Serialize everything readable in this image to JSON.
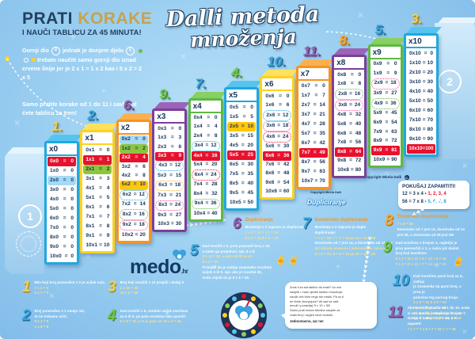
{
  "header": {
    "title_dark": "PRATI",
    "title_gold": "KORAKE",
    "subtitle": "I NAUČI TABLICU ZA 45 MINUTA!",
    "para1_a": "Gornji dio",
    "circle_2": "2",
    "para1_b": "jednak je donjem djelu",
    "circle_1": "1",
    "para1_c": "trebate naučiti samo gornji dio iznad crvene linije jer je 2 x 1 = 1 x 2 kao i 5 x 2 = 2 x 5",
    "para2_a": "Samo pratite korake od",
    "para2_bold": "1 do 11",
    "para2_b": "i savladat ćete tablicu za tren!"
  },
  "title": {
    "line1": "Dalli metoda",
    "line2": "množenja"
  },
  "markers": {
    "bottom_left": "1",
    "top_right": "2"
  },
  "table": {
    "columns": [
      {
        "label": "x0",
        "step": "1.",
        "theme": "cyan",
        "stepColor": "gold",
        "rows": [
          [
            "0x0",
            "0",
            "red"
          ],
          [
            "1x0",
            "0",
            ""
          ],
          [
            "2x0",
            "0",
            "blue"
          ],
          [
            "3x0",
            "0",
            ""
          ],
          [
            "4x0",
            "0",
            ""
          ],
          [
            "5x0",
            "0",
            ""
          ],
          [
            "6x0",
            "0",
            ""
          ],
          [
            "7x0",
            "0",
            ""
          ],
          [
            "8x0",
            "0",
            ""
          ],
          [
            "9x0",
            "0",
            ""
          ],
          [
            "10x0",
            "0",
            ""
          ]
        ]
      },
      {
        "label": "x1",
        "step": "2.",
        "theme": "yellow",
        "stepColor": "blue",
        "rows": [
          [
            "0x1",
            "0",
            ""
          ],
          [
            "1x1",
            "1",
            "red"
          ],
          [
            "2x1",
            "2",
            "green"
          ],
          [
            "3x1",
            "3",
            ""
          ],
          [
            "4x1",
            "4",
            ""
          ],
          [
            "5x1",
            "5",
            ""
          ],
          [
            "6x1",
            "6",
            ""
          ],
          [
            "7x1",
            "7",
            ""
          ],
          [
            "8x1",
            "8",
            ""
          ],
          [
            "9x1",
            "9",
            ""
          ],
          [
            "10x1",
            "10",
            ""
          ]
        ]
      },
      {
        "label": "x2",
        "step": "6.",
        "theme": "orange",
        "stepColor": "purple",
        "rows": [
          [
            "0x2",
            "0",
            "blue"
          ],
          [
            "1x2",
            "2",
            "green"
          ],
          [
            "2x2",
            "4",
            "red"
          ],
          [
            "3x2",
            "6",
            ""
          ],
          [
            "4x2",
            "8",
            ""
          ],
          [
            "5x2",
            "10",
            "yellow"
          ],
          [
            "6x2",
            "12",
            "dot-blue"
          ],
          [
            "7x2",
            "14",
            ""
          ],
          [
            "8x2",
            "16",
            "dot-green"
          ],
          [
            "9x2",
            "18",
            "dot-pink"
          ],
          [
            "10x2",
            "20",
            ""
          ]
        ]
      },
      {
        "label": "x3",
        "step": "9.",
        "theme": "purple",
        "stepColor": "green",
        "rows": [
          [
            "0x3",
            "0",
            ""
          ],
          [
            "1x3",
            "3",
            ""
          ],
          [
            "2x3",
            "6",
            ""
          ],
          [
            "3x3",
            "9",
            "red"
          ],
          [
            "4x3",
            "12",
            "dot-blue"
          ],
          [
            "5x3",
            "15",
            ""
          ],
          [
            "6x3",
            "18",
            "dot-yellow"
          ],
          [
            "7x3",
            "21",
            ""
          ],
          [
            "8x3",
            "24",
            "dot-pink"
          ],
          [
            "9x3",
            "27",
            ""
          ],
          [
            "10x3",
            "30",
            ""
          ]
        ]
      },
      {
        "label": "x4",
        "step": "7.",
        "theme": "green",
        "stepColor": "blue",
        "rows": [
          [
            "0x4",
            "0",
            ""
          ],
          [
            "1x4",
            "4",
            ""
          ],
          [
            "2x4",
            "8",
            ""
          ],
          [
            "3x4",
            "12",
            "dot-blue"
          ],
          [
            "4x4",
            "16",
            "red"
          ],
          [
            "5x4",
            "20",
            ""
          ],
          [
            "6x4",
            "24",
            "dot-red"
          ],
          [
            "7x4",
            "28",
            ""
          ],
          [
            "8x4",
            "32",
            ""
          ],
          [
            "9x4",
            "36",
            "dot-green"
          ],
          [
            "10x4",
            "40",
            ""
          ]
        ]
      },
      {
        "label": "x5",
        "step": "4.",
        "theme": "cyan",
        "stepColor": "green",
        "rows": [
          [
            "0x5",
            "0",
            ""
          ],
          [
            "1x5",
            "5",
            ""
          ],
          [
            "2x5",
            "10",
            "yellow"
          ],
          [
            "3x5",
            "15",
            ""
          ],
          [
            "4x5",
            "20",
            ""
          ],
          [
            "5x5",
            "25",
            "red"
          ],
          [
            "6x5",
            "30",
            ""
          ],
          [
            "7x5",
            "35",
            ""
          ],
          [
            "8x5",
            "40",
            ""
          ],
          [
            "9x5",
            "45",
            ""
          ],
          [
            "10x5",
            "50",
            ""
          ]
        ]
      },
      {
        "label": "x6",
        "step": "10.",
        "theme": "yellow",
        "stepColor": "blue",
        "rows": [
          [
            "0x6",
            "0",
            ""
          ],
          [
            "1x6",
            "6",
            ""
          ],
          [
            "2x6",
            "12",
            "dot-blue"
          ],
          [
            "3x6",
            "18",
            "dot-pink"
          ],
          [
            "4x6",
            "24",
            "dot-red"
          ],
          [
            "5x6",
            "30",
            ""
          ],
          [
            "6x6",
            "36",
            "red"
          ],
          [
            "7x6",
            "42",
            ""
          ],
          [
            "8x6",
            "48",
            ""
          ],
          [
            "9x6",
            "54",
            ""
          ],
          [
            "10x6",
            "60",
            ""
          ]
        ]
      },
      {
        "label": "x7",
        "step": "11.",
        "theme": "orange",
        "stepColor": "purple",
        "rows": [
          [
            "0x7",
            "0",
            ""
          ],
          [
            "1x7",
            "7",
            ""
          ],
          [
            "2x7",
            "14",
            ""
          ],
          [
            "3x7",
            "21",
            ""
          ],
          [
            "4x7",
            "28",
            ""
          ],
          [
            "5x7",
            "35",
            ""
          ],
          [
            "6x7",
            "42",
            ""
          ],
          [
            "7x7",
            "49",
            "red"
          ],
          [
            "8x7",
            "56",
            ""
          ],
          [
            "9x7",
            "63",
            ""
          ],
          [
            "10x7",
            "70",
            ""
          ]
        ]
      },
      {
        "label": "x8",
        "step": "8.",
        "theme": "purple",
        "stepColor": "orange",
        "rows": [
          [
            "0x8",
            "0",
            ""
          ],
          [
            "1x8",
            "8",
            ""
          ],
          [
            "2x8",
            "16",
            "dot-green"
          ],
          [
            "3x8",
            "24",
            "dot-pink"
          ],
          [
            "4x8",
            "32",
            ""
          ],
          [
            "5x8",
            "40",
            ""
          ],
          [
            "6x8",
            "48",
            ""
          ],
          [
            "7x8",
            "56",
            ""
          ],
          [
            "8x8",
            "64",
            "red"
          ],
          [
            "9x8",
            "72",
            ""
          ],
          [
            "10x8",
            "80",
            ""
          ]
        ]
      },
      {
        "label": "x9",
        "step": "5.",
        "theme": "green",
        "stepColor": "blue",
        "rows": [
          [
            "0x9",
            "0",
            ""
          ],
          [
            "1x9",
            "9",
            ""
          ],
          [
            "2x9",
            "18",
            "dot-pink"
          ],
          [
            "3x9",
            "27",
            ""
          ],
          [
            "4x9",
            "36",
            "dot-green"
          ],
          [
            "5x9",
            "45",
            ""
          ],
          [
            "6x9",
            "54",
            ""
          ],
          [
            "7x9",
            "63",
            ""
          ],
          [
            "8x9",
            "72",
            ""
          ],
          [
            "9x9",
            "81",
            "red"
          ],
          [
            "10x9",
            "90",
            ""
          ]
        ]
      },
      {
        "label": "x10",
        "step": "3.",
        "theme": "cyan",
        "stepColor": "gold",
        "rows": [
          [
            "0x10",
            "0",
            ""
          ],
          [
            "1x10",
            "10",
            ""
          ],
          [
            "2x10",
            "20",
            ""
          ],
          [
            "3x10",
            "30",
            ""
          ],
          [
            "4x10",
            "40",
            ""
          ],
          [
            "5x10",
            "50",
            ""
          ],
          [
            "6x10",
            "60",
            ""
          ],
          [
            "7x10",
            "70",
            ""
          ],
          [
            "8x10",
            "80",
            ""
          ],
          [
            "9x10",
            "90",
            ""
          ],
          [
            "10x10",
            "100",
            "red"
          ]
        ]
      }
    ]
  },
  "memo_box": {
    "title": "POKUŠAJ ZAPAMTITI!",
    "line1_eq": "12 = 3 x 4",
    "line1_seq": "1, 2, 3, 4",
    "line2_eq": "56 = 7 x 8",
    "line2_seq": "5, 6, 7, 8"
  },
  "copyright": {
    "text": "Copyright Mirela Dalli",
    "symbol": "C"
  },
  "logo": {
    "word": "medo",
    "tld": ".hr"
  },
  "labels": {
    "duplication": "Dupliciranje"
  },
  "decor": {
    "chevrons_long": "▸▸▸▸▸▸▸▸▸▸▸▸▸▸",
    "chevrons_short": "▸▸▸▸▸▸▸",
    "hand_glyph": "✌",
    "math_symbols": [
      "+",
      "×",
      "÷",
      "="
    ]
  },
  "tips": [
    {
      "num": "1",
      "color": "gold",
      "heading": "",
      "lines": [
        "Bilo koji broj pomnožen s 0 je uvijek nula.",
        "7 x 0 = 0",
        "0 x 7 = 0"
      ]
    },
    {
      "num": "2",
      "color": "blue",
      "heading": "",
      "lines": [
        "Broj pomnožen s 1 ostaje isti,",
        "to ne trebamo učiti.",
        "8 x 1 = 8",
        "1 x 8 = 8"
      ]
    },
    {
      "num": "3",
      "color": "gold",
      "heading": "",
      "lines": [
        "Broj koji množiš s 10 prepiši i dodaj 0.",
        "4 x 10 = 40",
        "10 x 6 = 60"
      ]
    },
    {
      "num": "4",
      "color": "green",
      "heading": "",
      "lines": [
        "Kad množiš s 5, rezultat uvijek završava",
        "na 5 ili 0, pa pola rezultata lako pamtiš:",
        "5 x 3 = 15, a to je pola od 10 x 3 = 30."
      ]
    },
    {
      "num": "5",
      "color": "blue",
      "heading": "",
      "lines": [
        "Kad množiš s 5, prvo pomnoži broj s 10,",
        "a zatim ga prepolovi, npr. 8 x 5:",
        "8 x 10 = 80, a pola od 80 je 40.",
        "8 x 5 = 40",
        "Primijeti da je zadnja znamenka rezultata",
        "uvijek 5 ili 0, npr. ako je rezultat 45,",
        "onda vrijedi da je 9 x 5 = 45."
      ]
    },
    {
      "num": "6",
      "color": "purple",
      "heading": "Dupliciranje",
      "lines": [
        "Množenje s 2 zapravo je dupliciranje:",
        "7 x 2 = 14    7 + 7 = 14",
        "8 x 2 = 16    8 + 8 = 16"
      ]
    },
    {
      "num": "7",
      "color": "blue",
      "heading": "Dvostruko dupliciranje",
      "lines": [
        "Množenje s 4 zapravo je duplo",
        "dupliciranje:",
        "7 x 4 = 28:  7 + 7 = 14  pa  14 + 14 = 28",
        "Dvostruko od 7 jest 14, a dvostruko od 14 jest",
        "28! Ušteda vremena i jednostavno računanje:",
        "8 x 4 = 32:  8 + 8 = 16  pa  16 + 16 = 32"
      ]
    },
    {
      "num": "8",
      "color": "orange",
      "heading": "Trostruko dupliciranje",
      "lines": [
        "7 x 8 = 56",
        "Dvostruko od 7 jest 14, dvostruko od 14",
        "jest 28, a dvostruko od 28 jest 56!"
      ]
    },
    {
      "num": "9",
      "color": "green",
      "heading": "",
      "lines": [
        "Kad množimo s brojem 3, najbolje je",
        "prvo pomnožiti s 2, a zatim još dodati",
        "broj koji množimo:",
        "6 x 3 = (6 x 2) + 6 = 12 + 6 = 18",
        "7 x 3 = (7 x 2) + 7 = 14 + 7 = 21"
      ]
    },
    {
      "num": "10",
      "color": "blue",
      "heading": "",
      "lines": [
        "Kad množimo parni broj sa 6, zadnja",
        "je znamenka taj parni broj, a prva je",
        "polovina tog parnog broja:",
        "2 x 6 = 12   4 x 6 = 24",
        "6 x 6 = 36   8 x 6 = 48",
        "4 x 6 = 24 je duplo 4 x 3 = 12",
        "6 x 6 = 36 je duplo 6 x 3 = 18"
      ]
    },
    {
      "num": "11",
      "color": "purple",
      "heading": "",
      "lines": [
        "Ako koristiš pravila od 1 do 10, onda",
        "si već naučio i množenje brojem 7.",
        "Ostaje ti samo 7 x 7 = 49, a to zapamti:",
        "7 x 7 = 7 x 6 + 7 = 42 + 7 = 49"
      ]
    }
  ],
  "bubble": {
    "lines": [
      "Znaš li za sat tablicu da znaš? Uz ove",
      "savjete i malo vježbe tablicu množenja",
      "naučit ćeš brže nego što misliš. Pa su ti",
      "se činile zbunjujuće? Ali sad se radi:",
      "množi i ponavljaj: 5 x 10 = 50!",
      "Samo prati redom Medine savjete za",
      "svaki broj i uspjeh neće izostati."
    ],
    "closing": "Jednostavno, zar ne!"
  }
}
